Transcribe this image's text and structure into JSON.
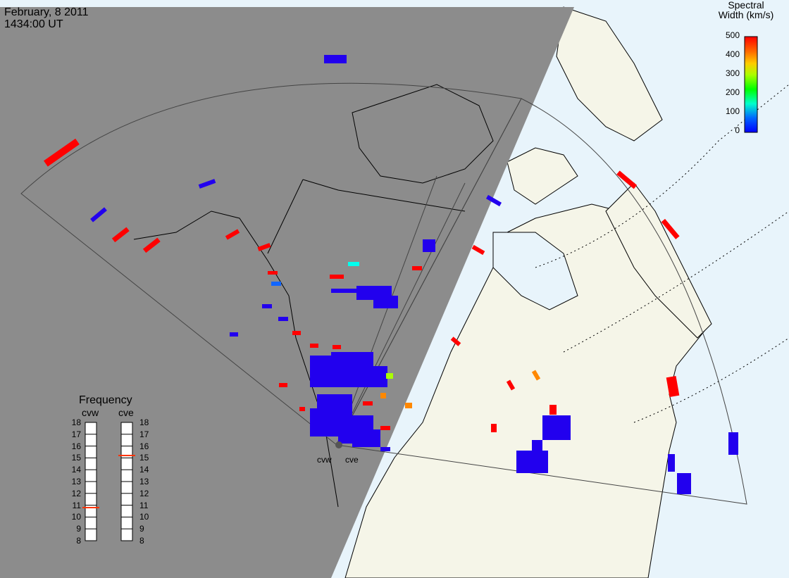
{
  "header": {
    "date": "February, 8 2011",
    "time": "1434:00 UT"
  },
  "legend": {
    "title_line1": "Spectral",
    "title_line2": "Width (km/s)",
    "ticks": [
      "500",
      "400",
      "300",
      "200",
      "100",
      "0"
    ],
    "colorscale": [
      "#0000ff",
      "#00aaff",
      "#00ffcc",
      "#00ff00",
      "#aaff00",
      "#ffcc00",
      "#ff8800",
      "#ff0000"
    ]
  },
  "frequency_panel": {
    "title": "Frequency",
    "radars": [
      "cvw",
      "cve"
    ],
    "scale": [
      "18",
      "17",
      "16",
      "15",
      "14",
      "13",
      "12",
      "11",
      "10",
      "9",
      "8"
    ],
    "cvw_marker_mhz": 10.8,
    "cve_marker_mhz": 15.2
  },
  "sites": [
    "cvw",
    "cve"
  ],
  "colors": {
    "night": "#8c8c8c",
    "land": "#f5f5e8",
    "ocean": "#e8f4fb",
    "outline": "#000000"
  }
}
